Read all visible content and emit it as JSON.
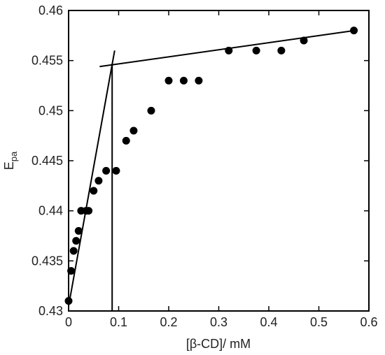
{
  "chart_data": {
    "type": "scatter",
    "title": "",
    "xlabel": "[β-CD]/ mM",
    "ylabel": {
      "main": "E",
      "sub": "pa"
    },
    "xlim": [
      0,
      0.6
    ],
    "ylim": [
      0.43,
      0.46
    ],
    "x_ticks": [
      "0",
      "0.1",
      "0.2",
      "0.3",
      "0.4",
      "0.5",
      "0.6"
    ],
    "y_ticks": [
      "0.43",
      "0.435",
      "0.44",
      "0.445",
      "0.45",
      "0.455",
      "0.46"
    ],
    "grid": false,
    "legend": "none",
    "marker_color": "#000000",
    "points": [
      {
        "x": 0.0,
        "y": 0.431
      },
      {
        "x": 0.005,
        "y": 0.434
      },
      {
        "x": 0.01,
        "y": 0.436
      },
      {
        "x": 0.015,
        "y": 0.437
      },
      {
        "x": 0.02,
        "y": 0.438
      },
      {
        "x": 0.025,
        "y": 0.44
      },
      {
        "x": 0.035,
        "y": 0.44
      },
      {
        "x": 0.04,
        "y": 0.44
      },
      {
        "x": 0.05,
        "y": 0.442
      },
      {
        "x": 0.06,
        "y": 0.443
      },
      {
        "x": 0.075,
        "y": 0.444
      },
      {
        "x": 0.095,
        "y": 0.444
      },
      {
        "x": 0.115,
        "y": 0.447
      },
      {
        "x": 0.13,
        "y": 0.448
      },
      {
        "x": 0.165,
        "y": 0.45
      },
      {
        "x": 0.2,
        "y": 0.453
      },
      {
        "x": 0.23,
        "y": 0.453
      },
      {
        "x": 0.26,
        "y": 0.453
      },
      {
        "x": 0.32,
        "y": 0.456
      },
      {
        "x": 0.375,
        "y": 0.456
      },
      {
        "x": 0.425,
        "y": 0.456
      },
      {
        "x": 0.47,
        "y": 0.457
      },
      {
        "x": 0.57,
        "y": 0.458
      }
    ],
    "fit_lines": [
      {
        "x": [
          0.0,
          0.092
        ],
        "y": [
          0.4305,
          0.456
        ]
      },
      {
        "x": [
          0.062,
          0.572
        ],
        "y": [
          0.4544,
          0.458
        ]
      }
    ],
    "intersection_drop": {
      "x": 0.087,
      "y": [
        0.43,
        0.4547
      ]
    }
  }
}
